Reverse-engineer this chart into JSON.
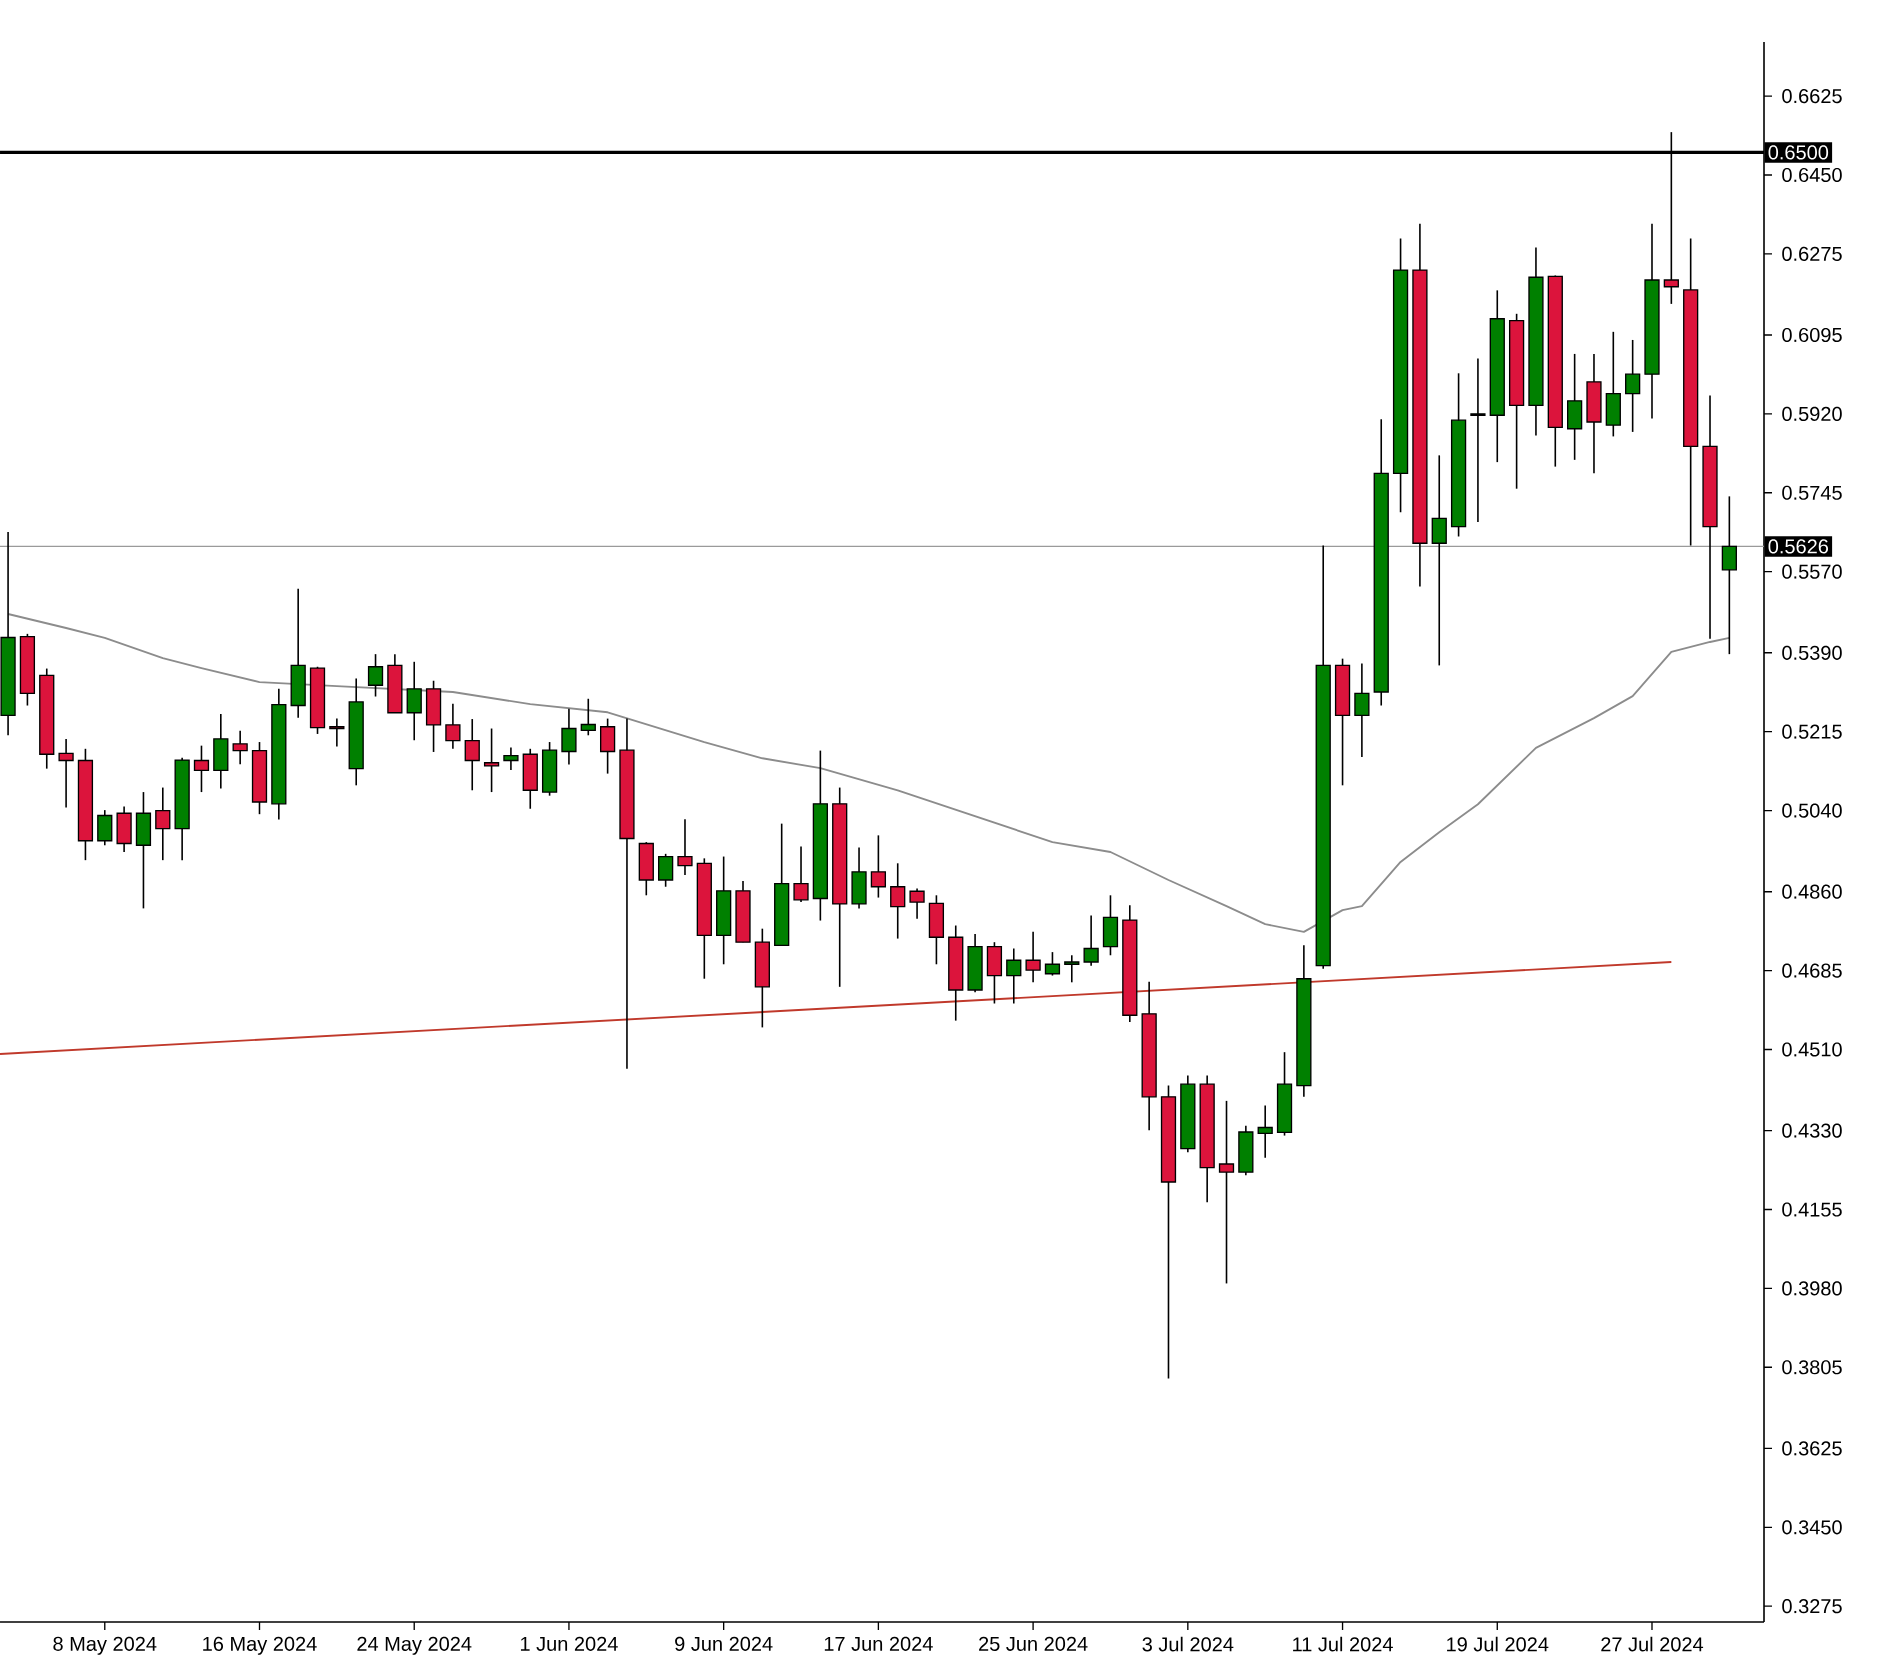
{
  "chart_data": {
    "type": "candlestick",
    "x": [
      "2024-05-03",
      "2024-05-04",
      "2024-05-05",
      "2024-05-06",
      "2024-05-07",
      "2024-05-08",
      "2024-05-09",
      "2024-05-10",
      "2024-05-11",
      "2024-05-12",
      "2024-05-13",
      "2024-05-14",
      "2024-05-15",
      "2024-05-16",
      "2024-05-17",
      "2024-05-18",
      "2024-05-19",
      "2024-05-20",
      "2024-05-21",
      "2024-05-22",
      "2024-05-23",
      "2024-05-24",
      "2024-05-25",
      "2024-05-26",
      "2024-05-27",
      "2024-05-28",
      "2024-05-29",
      "2024-05-30",
      "2024-05-31",
      "2024-06-01",
      "2024-06-02",
      "2024-06-03",
      "2024-06-04",
      "2024-06-05",
      "2024-06-06",
      "2024-06-07",
      "2024-06-08",
      "2024-06-09",
      "2024-06-10",
      "2024-06-11",
      "2024-06-12",
      "2024-06-13",
      "2024-06-14",
      "2024-06-15",
      "2024-06-16",
      "2024-06-17",
      "2024-06-18",
      "2024-06-19",
      "2024-06-20",
      "2024-06-21",
      "2024-06-22",
      "2024-06-23",
      "2024-06-24",
      "2024-06-25",
      "2024-06-26",
      "2024-06-27",
      "2024-06-28",
      "2024-06-29",
      "2024-06-30",
      "2024-07-01",
      "2024-07-02",
      "2024-07-03",
      "2024-07-04",
      "2024-07-05",
      "2024-07-06",
      "2024-07-07",
      "2024-07-08",
      "2024-07-09",
      "2024-07-10",
      "2024-07-11",
      "2024-07-12",
      "2024-07-13",
      "2024-07-14",
      "2024-07-15",
      "2024-07-16",
      "2024-07-17",
      "2024-07-18",
      "2024-07-19",
      "2024-07-20",
      "2024-07-21",
      "2024-07-22",
      "2024-07-23",
      "2024-07-24",
      "2024-07-25",
      "2024-07-26",
      "2024-07-27",
      "2024-07-28",
      "2024-07-29",
      "2024-07-30",
      "2024-07-31"
    ],
    "ohlc": [
      [
        0.5251,
        0.5658,
        0.5207,
        0.5424
      ],
      [
        0.5426,
        0.5432,
        0.5273,
        0.53
      ],
      [
        0.534,
        0.5355,
        0.5133,
        0.5165
      ],
      [
        0.5167,
        0.5199,
        0.5047,
        0.5151
      ],
      [
        0.5151,
        0.5177,
        0.493,
        0.4973
      ],
      [
        0.4973,
        0.5041,
        0.4963,
        0.5029
      ],
      [
        0.5034,
        0.5049,
        0.4948,
        0.4967
      ],
      [
        0.4963,
        0.5081,
        0.4823,
        0.5034
      ],
      [
        0.504,
        0.5091,
        0.493,
        0.5
      ],
      [
        0.5,
        0.5157,
        0.493,
        0.5152
      ],
      [
        0.5151,
        0.5184,
        0.5081,
        0.5129
      ],
      [
        0.5129,
        0.5254,
        0.5089,
        0.5199
      ],
      [
        0.5188,
        0.5217,
        0.5143,
        0.5173
      ],
      [
        0.5173,
        0.5192,
        0.5032,
        0.5059
      ],
      [
        0.5055,
        0.531,
        0.502,
        0.5275
      ],
      [
        0.5273,
        0.5532,
        0.5246,
        0.5362
      ],
      [
        0.5356,
        0.5359,
        0.521,
        0.5224
      ],
      [
        0.5226,
        0.5244,
        0.5182,
        0.5222
      ],
      [
        0.5133,
        0.5333,
        0.5096,
        0.5281
      ],
      [
        0.5318,
        0.5387,
        0.5293,
        0.5359
      ],
      [
        0.5362,
        0.5387,
        0.5257,
        0.5257
      ],
      [
        0.5257,
        0.537,
        0.5196,
        0.531
      ],
      [
        0.531,
        0.5328,
        0.517,
        0.523
      ],
      [
        0.523,
        0.5277,
        0.5177,
        0.5195
      ],
      [
        0.5195,
        0.5243,
        0.5085,
        0.5151
      ],
      [
        0.5146,
        0.5222,
        0.5081,
        0.5139
      ],
      [
        0.5151,
        0.518,
        0.513,
        0.5162
      ],
      [
        0.5165,
        0.5177,
        0.5044,
        0.5085
      ],
      [
        0.5081,
        0.5192,
        0.5073,
        0.5174
      ],
      [
        0.5171,
        0.5266,
        0.5142,
        0.5222
      ],
      [
        0.5218,
        0.5288,
        0.5207,
        0.5231
      ],
      [
        0.5226,
        0.5244,
        0.5122,
        0.5171
      ],
      [
        0.5174,
        0.5244,
        0.4467,
        0.4978
      ],
      [
        0.4967,
        0.497,
        0.4852,
        0.4886
      ],
      [
        0.4886,
        0.4944,
        0.4871,
        0.4938
      ],
      [
        0.4938,
        0.5021,
        0.4897,
        0.4918
      ],
      [
        0.4923,
        0.4934,
        0.4667,
        0.4763
      ],
      [
        0.4763,
        0.4938,
        0.4699,
        0.4862
      ],
      [
        0.4862,
        0.4884,
        0.4748,
        0.4748
      ],
      [
        0.4748,
        0.4778,
        0.4559,
        0.4649
      ],
      [
        0.4741,
        0.5011,
        0.4741,
        0.4878
      ],
      [
        0.4878,
        0.496,
        0.4837,
        0.4842
      ],
      [
        0.4845,
        0.5173,
        0.4796,
        0.5055
      ],
      [
        0.5055,
        0.5091,
        0.4649,
        0.4833
      ],
      [
        0.4833,
        0.4958,
        0.4823,
        0.4904
      ],
      [
        0.4904,
        0.4985,
        0.4847,
        0.4871
      ],
      [
        0.4871,
        0.4923,
        0.4756,
        0.4827
      ],
      [
        0.4861,
        0.4867,
        0.48,
        0.4837
      ],
      [
        0.4834,
        0.4852,
        0.4699,
        0.4759
      ],
      [
        0.4759,
        0.4785,
        0.4574,
        0.4642
      ],
      [
        0.4642,
        0.4766,
        0.4637,
        0.4738
      ],
      [
        0.4738,
        0.4748,
        0.4612,
        0.4674
      ],
      [
        0.4674,
        0.4734,
        0.4612,
        0.4708
      ],
      [
        0.4708,
        0.4771,
        0.4659,
        0.4686
      ],
      [
        0.4678,
        0.4726,
        0.4674,
        0.4699
      ],
      [
        0.4699,
        0.4719,
        0.4659,
        0.4704
      ],
      [
        0.4704,
        0.4807,
        0.4696,
        0.4734
      ],
      [
        0.4738,
        0.4852,
        0.4719,
        0.4803
      ],
      [
        0.4797,
        0.483,
        0.4571,
        0.4586
      ],
      [
        0.4589,
        0.466,
        0.4331,
        0.4405
      ],
      [
        0.4405,
        0.443,
        0.378,
        0.4216
      ],
      [
        0.429,
        0.4452,
        0.4282,
        0.4433
      ],
      [
        0.4433,
        0.4452,
        0.4171,
        0.4248
      ],
      [
        0.4256,
        0.4396,
        0.3991,
        0.4238
      ],
      [
        0.4238,
        0.4341,
        0.4231,
        0.4327
      ],
      [
        0.4324,
        0.4386,
        0.427,
        0.4337
      ],
      [
        0.4326,
        0.4504,
        0.4319,
        0.4433
      ],
      [
        0.443,
        0.4741,
        0.4405,
        0.4667
      ],
      [
        0.4696,
        0.5628,
        0.4689,
        0.5362
      ],
      [
        0.5362,
        0.5377,
        0.5096,
        0.5251
      ],
      [
        0.5251,
        0.5366,
        0.5159,
        0.53
      ],
      [
        0.5303,
        0.5908,
        0.5273,
        0.5788
      ],
      [
        0.5788,
        0.6309,
        0.5702,
        0.6239
      ],
      [
        0.6239,
        0.6342,
        0.5537,
        0.5633
      ],
      [
        0.5633,
        0.5828,
        0.5362,
        0.5688
      ],
      [
        0.567,
        0.601,
        0.5648,
        0.5906
      ],
      [
        0.5917,
        0.6043,
        0.568,
        0.592
      ],
      [
        0.5917,
        0.6194,
        0.5813,
        0.6131
      ],
      [
        0.6127,
        0.6142,
        0.5754,
        0.5939
      ],
      [
        0.5939,
        0.6289,
        0.5872,
        0.6223
      ],
      [
        0.6225,
        0.6227,
        0.5803,
        0.589
      ],
      [
        0.5887,
        0.6053,
        0.5818,
        0.5949
      ],
      [
        0.5991,
        0.6053,
        0.5788,
        0.5902
      ],
      [
        0.5895,
        0.6102,
        0.587,
        0.5965
      ],
      [
        0.5965,
        0.6084,
        0.588,
        0.6008
      ],
      [
        0.6008,
        0.6342,
        0.591,
        0.6217
      ],
      [
        0.6217,
        0.6545,
        0.6164,
        0.6202
      ],
      [
        0.6195,
        0.6309,
        0.5628,
        0.5848
      ],
      [
        0.5848,
        0.5961,
        0.5421,
        0.567
      ],
      [
        0.5574,
        0.5737,
        0.5387,
        0.5626
      ]
    ],
    "colors": [
      "#008000",
      "#dc143c",
      "#dc143c",
      "#dc143c",
      "#dc143c",
      "#008000",
      "#dc143c",
      "#008000",
      "#dc143c",
      "#008000",
      "#dc143c",
      "#008000",
      "#dc143c",
      "#dc143c",
      "#008000",
      "#008000",
      "#dc143c",
      "#dc143c",
      "#008000",
      "#008000",
      "#dc143c",
      "#008000",
      "#dc143c",
      "#dc143c",
      "#dc143c",
      "#dc143c",
      "#008000",
      "#dc143c",
      "#008000",
      "#008000",
      "#008000",
      "#dc143c",
      "#dc143c",
      "#dc143c",
      "#008000",
      "#dc143c",
      "#dc143c",
      "#008000",
      "#dc143c",
      "#dc143c",
      "#008000",
      "#dc143c",
      "#008000",
      "#dc143c",
      "#008000",
      "#dc143c",
      "#dc143c",
      "#dc143c",
      "#dc143c",
      "#dc143c",
      "#008000",
      "#dc143c",
      "#008000",
      "#dc143c",
      "#008000",
      "#008000",
      "#008000",
      "#008000",
      "#dc143c",
      "#dc143c",
      "#dc143c",
      "#008000",
      "#dc143c",
      "#dc143c",
      "#008000",
      "#008000",
      "#008000",
      "#008000",
      "#008000",
      "#dc143c",
      "#008000",
      "#008000",
      "#008000",
      "#dc143c",
      "#008000",
      "#008000",
      "#008000",
      "#008000",
      "#dc143c",
      "#008000",
      "#dc143c",
      "#008000",
      "#dc143c",
      "#008000",
      "#008000",
      "#008000",
      "#dc143c",
      "#dc143c",
      "#dc143c",
      "#008000"
    ],
    "series": [
      {
        "type": "line",
        "color": "#8c8c8c",
        "x": [
          "2024-05-03",
          "2024-05-06",
          "2024-05-08",
          "2024-05-11",
          "2024-05-13",
          "2024-05-16",
          "2024-05-20",
          "2024-05-26",
          "2024-05-30",
          "2024-06-03",
          "2024-06-08",
          "2024-06-11",
          "2024-06-14",
          "2024-06-18",
          "2024-06-26",
          "2024-06-29",
          "2024-07-02",
          "2024-07-05",
          "2024-07-07",
          "2024-07-09",
          "2024-07-11",
          "2024-07-12",
          "2024-07-14",
          "2024-07-16",
          "2024-07-18",
          "2024-07-21",
          "2024-07-24",
          "2024-07-26",
          "2024-07-28",
          "2024-07-30",
          "2024-07-31"
        ],
        "values": [
          0.5476,
          0.5445,
          0.5423,
          0.5378,
          0.5356,
          0.5325,
          0.5316,
          0.5303,
          0.5276,
          0.5258,
          0.5192,
          0.5156,
          0.5134,
          0.5085,
          0.497,
          0.4948,
          0.4886,
          0.4828,
          0.4788,
          0.4771,
          0.4819,
          0.4828,
          0.4926,
          0.4992,
          0.5054,
          0.5179,
          0.5245,
          0.5294,
          0.5392,
          0.5414,
          0.5423
        ]
      },
      {
        "type": "line",
        "color": "#c0392b",
        "x": [
          "2024-05-02T14:00",
          "2024-07-28"
        ],
        "values": [
          0.45,
          0.4704
        ]
      }
    ],
    "ref_lines": [
      {
        "axis": "y",
        "value": 0.65,
        "label": "0.6500",
        "color": "#000000"
      },
      {
        "axis": "y",
        "value": 0.5626,
        "label": "0.5626",
        "color": "#9a9a9a"
      }
    ],
    "xlim": [
      "2024-05-02T14:00",
      "2024-08-01T19:00"
    ],
    "ylim": [
      0.324,
      0.6745
    ],
    "xticks": [
      {
        "value": "2024-05-08",
        "label": "8 May 2024"
      },
      {
        "value": "2024-05-16",
        "label": "16 May 2024"
      },
      {
        "value": "2024-05-24",
        "label": "24 May 2024"
      },
      {
        "value": "2024-06-01",
        "label": "1 Jun 2024"
      },
      {
        "value": "2024-06-09",
        "label": "9 Jun 2024"
      },
      {
        "value": "2024-06-17",
        "label": "17 Jun 2024"
      },
      {
        "value": "2024-06-25",
        "label": "25 Jun 2024"
      },
      {
        "value": "2024-07-03",
        "label": "3 Jul 2024"
      },
      {
        "value": "2024-07-11",
        "label": "11 Jul 2024"
      },
      {
        "value": "2024-07-19",
        "label": "19 Jul 2024"
      },
      {
        "value": "2024-07-27",
        "label": "27 Jul 2024"
      }
    ],
    "yticks": [
      {
        "value": 0.6625,
        "label": "0.6625"
      },
      {
        "value": 0.645,
        "label": "0.6450"
      },
      {
        "value": 0.6275,
        "label": "0.6275"
      },
      {
        "value": 0.6095,
        "label": "0.6095"
      },
      {
        "value": 0.592,
        "label": "0.5920"
      },
      {
        "value": 0.5745,
        "label": "0.5745"
      },
      {
        "value": 0.557,
        "label": "0.5570"
      },
      {
        "value": 0.539,
        "label": "0.5390"
      },
      {
        "value": 0.5215,
        "label": "0.5215"
      },
      {
        "value": 0.504,
        "label": "0.5040"
      },
      {
        "value": 0.486,
        "label": "0.4860"
      },
      {
        "value": 0.4685,
        "label": "0.4685"
      },
      {
        "value": 0.451,
        "label": "0.4510"
      },
      {
        "value": 0.433,
        "label": "0.4330"
      },
      {
        "value": 0.4155,
        "label": "0.4155"
      },
      {
        "value": 0.398,
        "label": "0.3980"
      },
      {
        "value": 0.3805,
        "label": "0.3805"
      },
      {
        "value": 0.3625,
        "label": "0.3625"
      },
      {
        "value": 0.345,
        "label": "0.3450"
      },
      {
        "value": 0.3275,
        "label": "0.3275"
      }
    ]
  }
}
